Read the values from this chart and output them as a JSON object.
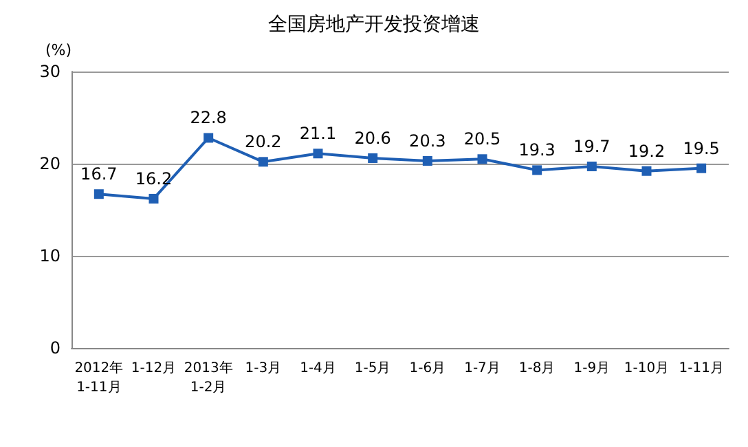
{
  "chart_data": {
    "type": "line",
    "title": "全国房地产开发投资增速",
    "ylabel": "(%)",
    "categories": [
      "2012年\n1-11月",
      "1-12月",
      "2013年\n1-2月",
      "1-3月",
      "1-4月",
      "1-5月",
      "1-6月",
      "1-7月",
      "1-8月",
      "1-9月",
      "1-10月",
      "1-11月"
    ],
    "series": [
      {
        "color": "#1f5fb4",
        "values": [
          16.7,
          16.2,
          22.8,
          20.2,
          21.1,
          20.6,
          20.3,
          20.5,
          19.3,
          19.7,
          19.2,
          19.5
        ]
      }
    ],
    "ylim": [
      0,
      30
    ],
    "yticks": [
      0,
      10,
      20,
      30
    ],
    "grid": "y",
    "marker": "square",
    "line_style": "solid",
    "data_labels": true
  }
}
